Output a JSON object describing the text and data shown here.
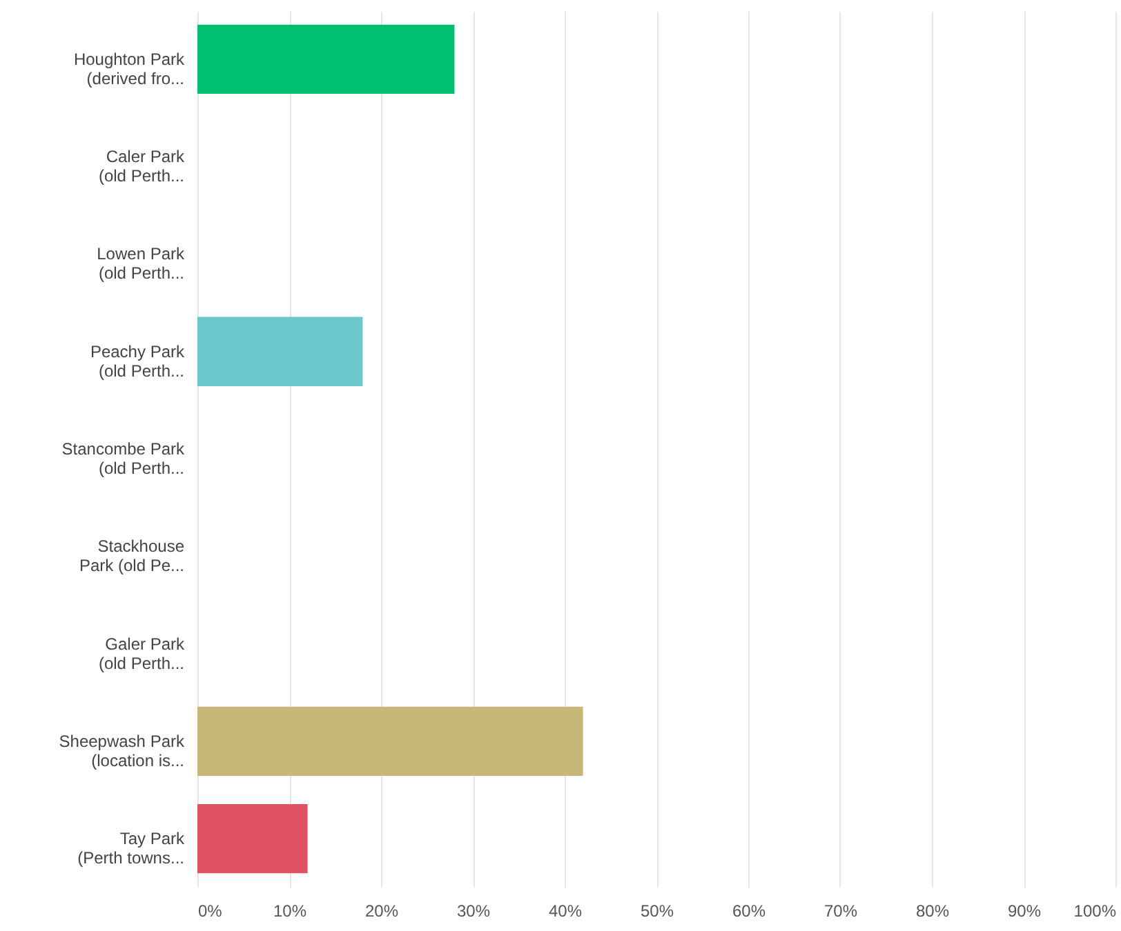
{
  "chart_data": {
    "type": "bar",
    "orientation": "horizontal",
    "categories": [
      "Houghton Park\n(derived fro...",
      "Caler Park\n(old Perth...",
      "Lowen Park\n(old Perth...",
      "Peachy Park\n(old Perth...",
      "Stancombe Park\n(old Perth...",
      "Stackhouse\nPark (old Pe...",
      "Galer Park\n(old Perth...",
      "Sheepwash Park\n(location is...",
      "Tay Park\n(Perth towns..."
    ],
    "values": [
      28,
      0,
      0,
      18,
      0,
      0,
      0,
      42,
      12
    ],
    "colors": [
      "#00bf6f",
      "#00bf6f",
      "#00bf6f",
      "#6bc8cd",
      "#6bc8cd",
      "#6bc8cd",
      "#6bc8cd",
      "#c7b879",
      "#e05263"
    ],
    "xlim": [
      0,
      100
    ],
    "xticks": [
      {
        "value": 0,
        "label": "0%"
      },
      {
        "value": 10,
        "label": "10%"
      },
      {
        "value": 20,
        "label": "20%"
      },
      {
        "value": 30,
        "label": "30%"
      },
      {
        "value": 40,
        "label": "40%"
      },
      {
        "value": 50,
        "label": "50%"
      },
      {
        "value": 60,
        "label": "60%"
      },
      {
        "value": 70,
        "label": "70%"
      },
      {
        "value": 80,
        "label": "80%"
      },
      {
        "value": 90,
        "label": "90%"
      },
      {
        "value": 100,
        "label": "100%"
      }
    ],
    "grid": "x"
  }
}
